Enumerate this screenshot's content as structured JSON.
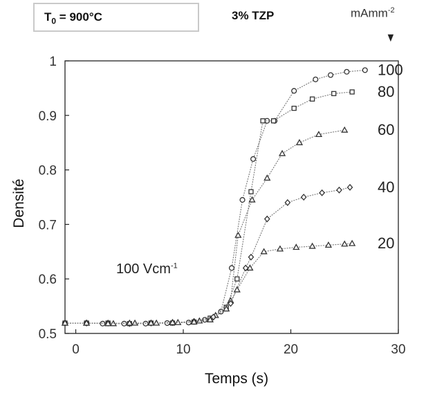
{
  "header": {
    "condition_label": "T",
    "condition_sub": "0",
    "condition_value": " = 900°C",
    "material": "3% TZP",
    "current_unit": "mAmm",
    "current_unit_exp": "-2",
    "arrow": "▼"
  },
  "annotation": {
    "field": "100 Vcm",
    "field_exp": "-1"
  },
  "chart_data": {
    "type": "line",
    "title": "",
    "xlabel": "Temps (s)",
    "ylabel": "Densité",
    "xlim": [
      -1,
      30
    ],
    "ylim": [
      0.5,
      1.0
    ],
    "xticks": [
      0,
      10,
      20,
      30
    ],
    "yticks": [
      0.5,
      0.6,
      0.7,
      0.8,
      0.9,
      1.0
    ],
    "ytick_labels": [
      "0.5",
      "0.6",
      "0.7",
      "0.8",
      "0.9",
      "1"
    ],
    "grid": false,
    "line_color": "#777777",
    "marker_color": "#333333",
    "series": [
      {
        "name": "100",
        "marker": "circle",
        "x": [
          -1,
          1,
          2.5,
          4.5,
          6.5,
          8.5,
          10.5,
          12,
          13.5,
          14.5,
          15.5,
          16.5,
          17.8,
          18.5,
          20.3,
          22.3,
          23.7,
          25.2,
          26.9
        ],
        "y": [
          0.519,
          0.519,
          0.518,
          0.518,
          0.518,
          0.519,
          0.52,
          0.525,
          0.54,
          0.62,
          0.745,
          0.82,
          0.89,
          0.89,
          0.945,
          0.966,
          0.974,
          0.98,
          0.983
        ]
      },
      {
        "name": "80",
        "marker": "square",
        "x": [
          -1,
          1,
          3,
          5,
          7,
          9,
          11,
          12.5,
          14,
          15,
          16.3,
          17.4,
          18.4,
          20.3,
          22,
          24,
          25.7
        ],
        "y": [
          0.519,
          0.519,
          0.519,
          0.518,
          0.519,
          0.519,
          0.521,
          0.528,
          0.548,
          0.6,
          0.76,
          0.89,
          0.89,
          0.913,
          0.93,
          0.94,
          0.943
        ]
      },
      {
        "name": "60",
        "marker": "triangle",
        "x": [
          -1,
          1,
          3.5,
          5.5,
          7.5,
          9.5,
          11.5,
          13,
          14.4,
          15.1,
          16.4,
          17.8,
          19.2,
          20.8,
          22.6,
          25
        ],
        "y": [
          0.519,
          0.519,
          0.518,
          0.519,
          0.519,
          0.52,
          0.523,
          0.533,
          0.56,
          0.68,
          0.745,
          0.785,
          0.83,
          0.85,
          0.865,
          0.873
        ]
      },
      {
        "name": "40",
        "marker": "diamond",
        "x": [
          -1,
          1,
          3,
          5,
          7,
          9,
          11,
          12.8,
          14.4,
          15.8,
          16.3,
          17.8,
          19.7,
          21.2,
          22.9,
          24.5,
          25.5
        ],
        "y": [
          0.519,
          0.519,
          0.519,
          0.518,
          0.519,
          0.52,
          0.522,
          0.53,
          0.555,
          0.62,
          0.64,
          0.71,
          0.74,
          0.75,
          0.758,
          0.763,
          0.768
        ]
      },
      {
        "name": "20",
        "marker": "triangle",
        "x": [
          -1,
          1,
          3,
          5,
          7,
          9,
          11,
          12.5,
          14,
          15,
          16.2,
          17.5,
          19,
          20.5,
          22,
          23.5,
          25,
          25.7
        ],
        "y": [
          0.519,
          0.519,
          0.518,
          0.519,
          0.519,
          0.52,
          0.521,
          0.525,
          0.545,
          0.58,
          0.62,
          0.65,
          0.655,
          0.658,
          0.66,
          0.662,
          0.664,
          0.665
        ]
      }
    ]
  }
}
